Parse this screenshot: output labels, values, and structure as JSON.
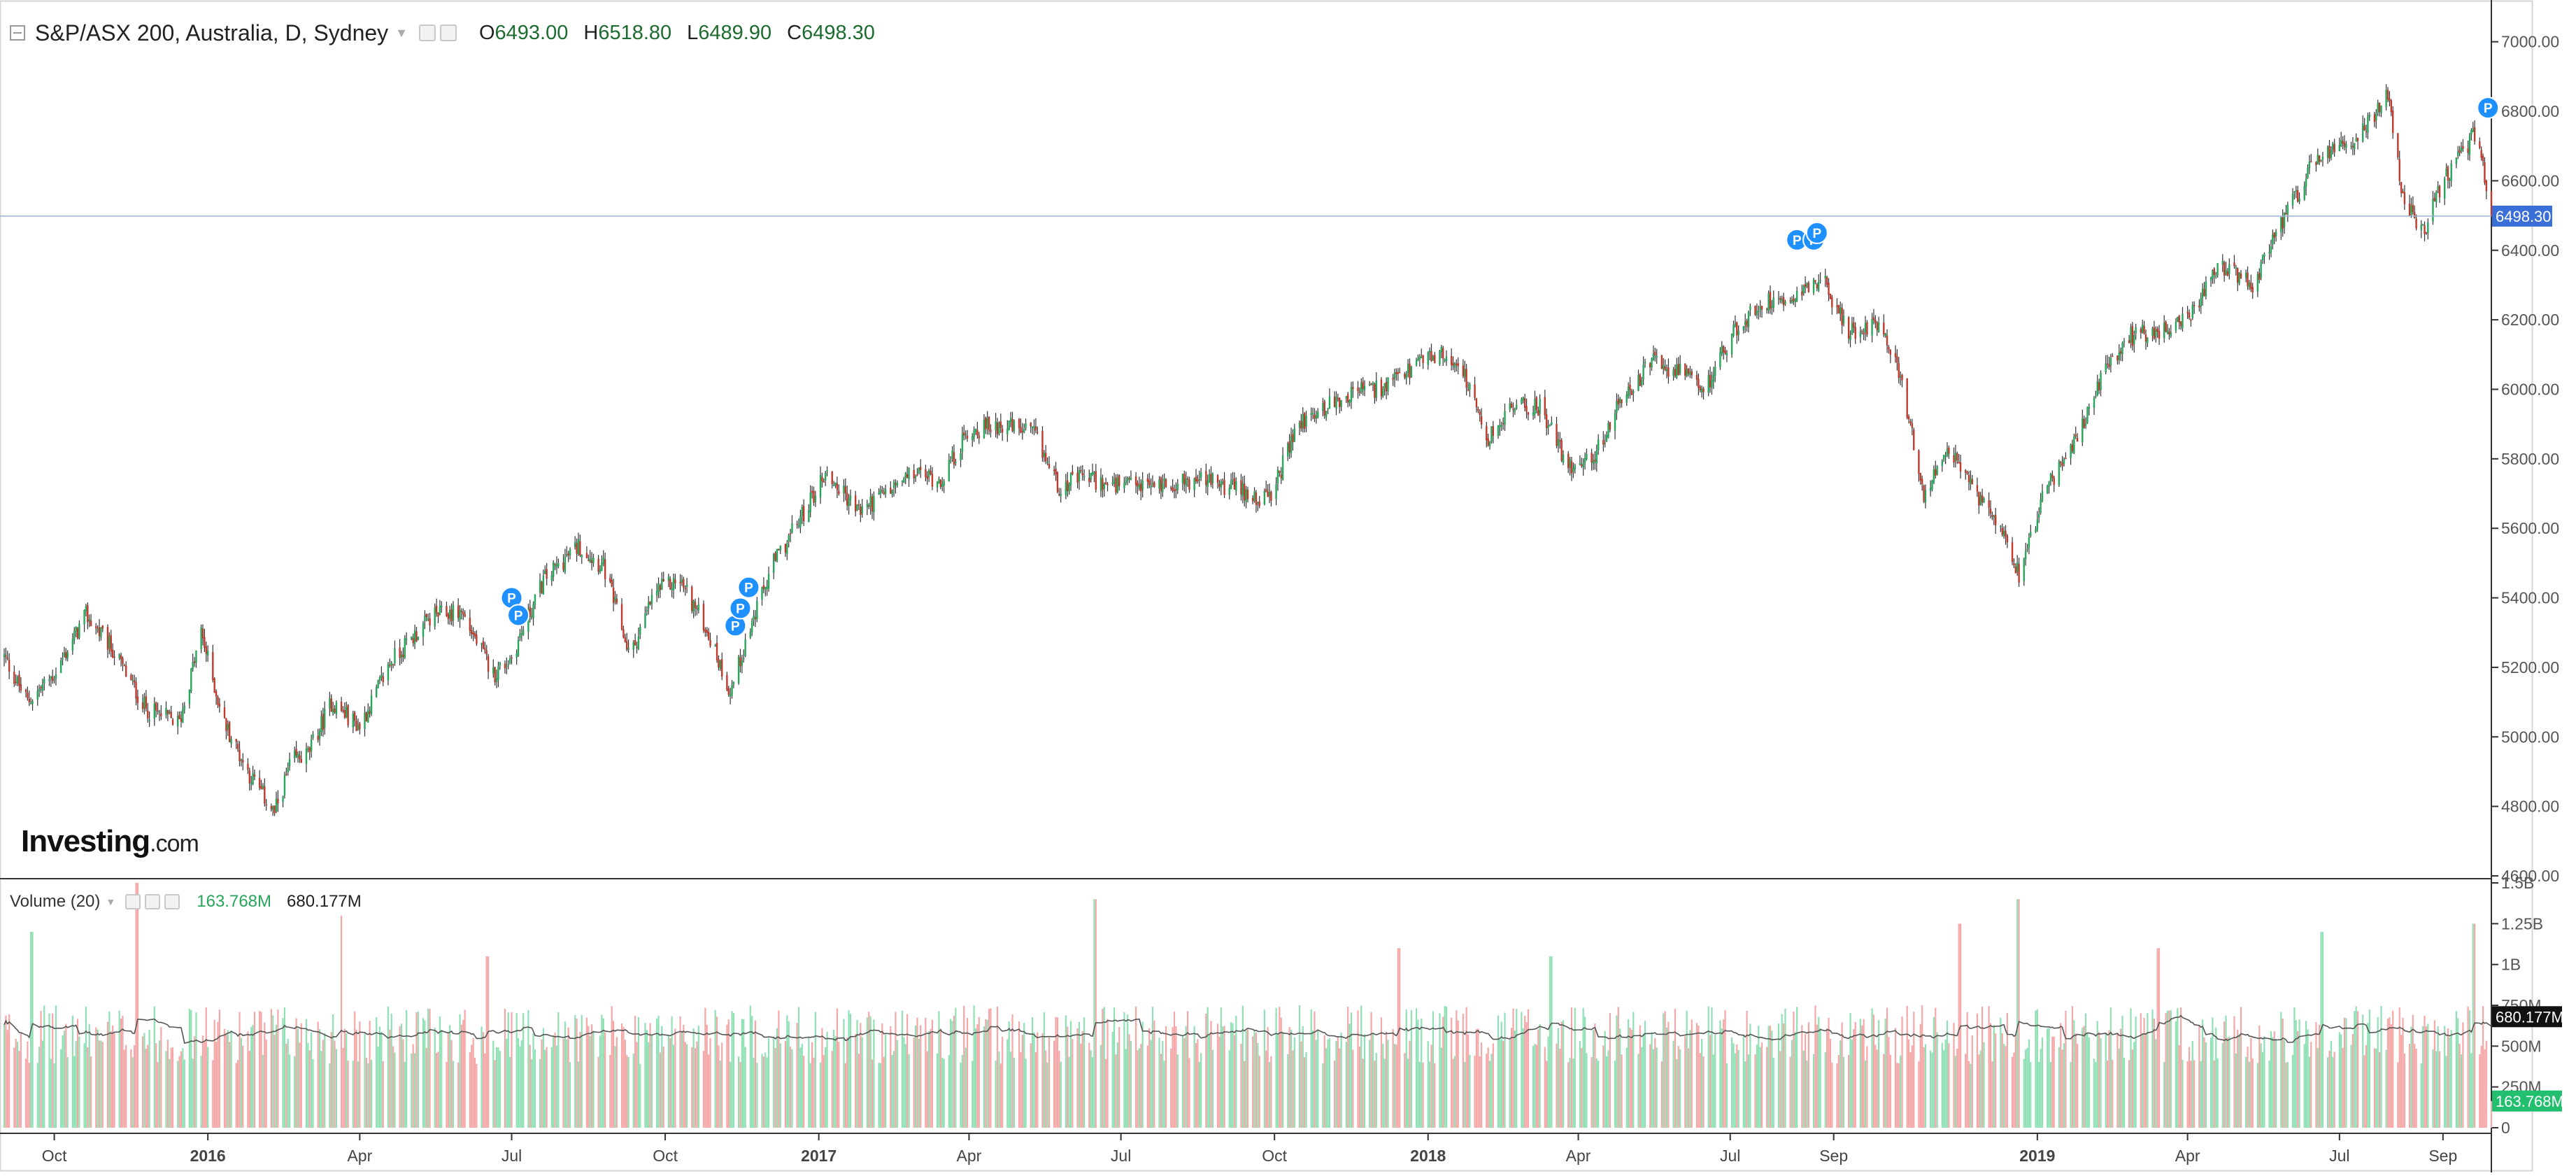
{
  "header": {
    "symbol": "S&P/ASX 200, Australia, D, Sydney",
    "open_label": "O",
    "open": "6493.00",
    "high_label": "H",
    "high": "6518.80",
    "low_label": "L",
    "low": "6489.90",
    "close_label": "C",
    "close": "6498.30"
  },
  "volume_header": {
    "title": "Volume (20)",
    "volume": "163.768M",
    "ma": "680.177M"
  },
  "logo": {
    "brand": "Investing",
    "suffix": ".com"
  },
  "colors": {
    "up": "#26a65b",
    "down": "#c0392b",
    "up_volume": "#8fe0b4",
    "down_volume": "#f5a7a7",
    "last_price_badge": "#3b6fd8",
    "ma_badge": "#111111",
    "volume_badge": "#22c06e",
    "marker": "#1e90ff"
  },
  "icons": [
    "collapse-icon",
    "caret-down-icon",
    "visibility-icon",
    "settings-icon",
    "close-icon",
    "marker-p-icon"
  ],
  "chart_data": [
    {
      "type": "candlestick",
      "title": "S&P/ASX 200, Australia, D, Sydney",
      "x_range": [
        "2015-09-01",
        "2019-09-30"
      ],
      "x_tick_labels": [
        "Oct",
        "2016",
        "Apr",
        "Jul",
        "Oct",
        "2017",
        "Apr",
        "Jul",
        "Oct",
        "2018",
        "Apr",
        "Jul",
        "Sep",
        "2019",
        "Apr",
        "Jul",
        "Sep"
      ],
      "x_tick_dates": [
        "2015-10-01",
        "2016-01-01",
        "2016-04-01",
        "2016-07-01",
        "2016-10-01",
        "2017-01-01",
        "2017-04-01",
        "2017-07-01",
        "2017-10-01",
        "2018-01-01",
        "2018-04-01",
        "2018-07-01",
        "2018-09-01",
        "2019-01-01",
        "2019-04-01",
        "2019-07-01",
        "2019-09-01"
      ],
      "y_range": [
        4600,
        7100
      ],
      "y_ticks": [
        "7000.00",
        "6800.00",
        "6600.00",
        "6400.00",
        "6200.00",
        "6000.00",
        "5800.00",
        "5600.00",
        "5400.00",
        "5200.00",
        "5000.00",
        "4800.00",
        "4600.00"
      ],
      "last_price": 6498.3,
      "last_price_label": "6498.30",
      "close_path": [
        [
          "2015-09-01",
          5230
        ],
        [
          "2015-09-15",
          5100
        ],
        [
          "2015-10-01",
          5180
        ],
        [
          "2015-10-20",
          5350
        ],
        [
          "2015-11-05",
          5250
        ],
        [
          "2015-11-25",
          5080
        ],
        [
          "2015-12-15",
          5040
        ],
        [
          "2015-12-28",
          5300
        ],
        [
          "2016-01-10",
          5050
        ],
        [
          "2016-01-25",
          4900
        ],
        [
          "2016-02-10",
          4780
        ],
        [
          "2016-02-20",
          4930
        ],
        [
          "2016-03-01",
          4950
        ],
        [
          "2016-03-15",
          5100
        ],
        [
          "2016-04-01",
          5030
        ],
        [
          "2016-04-20",
          5220
        ],
        [
          "2016-05-15",
          5350
        ],
        [
          "2016-06-01",
          5360
        ],
        [
          "2016-06-20",
          5180
        ],
        [
          "2016-07-01",
          5230
        ],
        [
          "2016-07-20",
          5450
        ],
        [
          "2016-08-10",
          5550
        ],
        [
          "2016-08-25",
          5490
        ],
        [
          "2016-09-10",
          5230
        ],
        [
          "2016-09-25",
          5420
        ],
        [
          "2016-10-10",
          5450
        ],
        [
          "2016-10-25",
          5320
        ],
        [
          "2016-11-09",
          5130
        ],
        [
          "2016-11-20",
          5300
        ],
        [
          "2016-12-05",
          5500
        ],
        [
          "2016-12-20",
          5620
        ],
        [
          "2017-01-05",
          5760
        ],
        [
          "2017-01-25",
          5650
        ],
        [
          "2017-02-10",
          5700
        ],
        [
          "2017-02-28",
          5760
        ],
        [
          "2017-03-15",
          5740
        ],
        [
          "2017-04-01",
          5880
        ],
        [
          "2017-04-20",
          5900
        ],
        [
          "2017-05-10",
          5870
        ],
        [
          "2017-05-25",
          5720
        ],
        [
          "2017-06-10",
          5750
        ],
        [
          "2017-06-25",
          5720
        ],
        [
          "2017-07-10",
          5720
        ],
        [
          "2017-08-01",
          5730
        ],
        [
          "2017-08-20",
          5740
        ],
        [
          "2017-09-10",
          5710
        ],
        [
          "2017-09-28",
          5680
        ],
        [
          "2017-10-15",
          5900
        ],
        [
          "2017-11-01",
          5950
        ],
        [
          "2017-11-20",
          6000
        ],
        [
          "2017-12-05",
          6000
        ],
        [
          "2017-12-20",
          6050
        ],
        [
          "2018-01-05",
          6100
        ],
        [
          "2018-01-20",
          6080
        ],
        [
          "2018-02-05",
          5850
        ],
        [
          "2018-02-20",
          5950
        ],
        [
          "2018-03-10",
          5950
        ],
        [
          "2018-03-25",
          5780
        ],
        [
          "2018-04-10",
          5800
        ],
        [
          "2018-04-25",
          5950
        ],
        [
          "2018-05-15",
          6080
        ],
        [
          "2018-06-01",
          6050
        ],
        [
          "2018-06-15",
          5990
        ],
        [
          "2018-07-01",
          6150
        ],
        [
          "2018-07-20",
          6250
        ],
        [
          "2018-08-05",
          6270
        ],
        [
          "2018-08-25",
          6320
        ],
        [
          "2018-09-10",
          6160
        ],
        [
          "2018-09-28",
          6200
        ],
        [
          "2018-10-10",
          6050
        ],
        [
          "2018-10-25",
          5700
        ],
        [
          "2018-11-10",
          5820
        ],
        [
          "2018-11-25",
          5700
        ],
        [
          "2018-12-10",
          5620
        ],
        [
          "2018-12-21",
          5470
        ],
        [
          "2019-01-05",
          5700
        ],
        [
          "2019-01-25",
          5860
        ],
        [
          "2019-02-10",
          6050
        ],
        [
          "2019-02-25",
          6150
        ],
        [
          "2019-03-15",
          6170
        ],
        [
          "2019-04-01",
          6200
        ],
        [
          "2019-04-20",
          6350
        ],
        [
          "2019-05-10",
          6300
        ],
        [
          "2019-05-25",
          6450
        ],
        [
          "2019-06-15",
          6650
        ],
        [
          "2019-07-05",
          6700
        ],
        [
          "2019-07-20",
          6780
        ],
        [
          "2019-07-30",
          6860
        ],
        [
          "2019-08-08",
          6550
        ],
        [
          "2019-08-20",
          6450
        ],
        [
          "2019-09-01",
          6600
        ],
        [
          "2019-09-15",
          6700
        ],
        [
          "2019-09-22",
          6750
        ],
        [
          "2019-09-25",
          6650
        ],
        [
          "2019-09-30",
          6498
        ]
      ],
      "markers": [
        {
          "date": "2016-07-01",
          "price": 5400,
          "label": "P"
        },
        {
          "date": "2016-07-05",
          "price": 5350,
          "label": "P"
        },
        {
          "date": "2016-11-12",
          "price": 5320,
          "label": "P"
        },
        {
          "date": "2016-11-15",
          "price": 5370,
          "label": "P"
        },
        {
          "date": "2016-11-20",
          "price": 5430,
          "label": "P"
        },
        {
          "date": "2018-08-10",
          "price": 6430,
          "label": "P"
        },
        {
          "date": "2018-08-20",
          "price": 6430,
          "label": "P"
        },
        {
          "date": "2018-08-22",
          "price": 6450,
          "label": "P"
        },
        {
          "date": "2019-09-28",
          "price": 6810,
          "label": "P"
        }
      ]
    },
    {
      "type": "bar",
      "title": "Volume (20)",
      "y_range": [
        0,
        1500
      ],
      "y_ticks": [
        "1.5B",
        "1.25B",
        "1B",
        "750M",
        "500M",
        "250M",
        "0"
      ],
      "y_tick_values": [
        1500,
        1250,
        1000,
        750,
        500,
        250,
        0
      ],
      "units": "M",
      "typical_volume": 600,
      "ma_level": 680.177,
      "ma_label": "680.177M",
      "last_volume": 163.768,
      "last_volume_label": "163.768M",
      "spikes": [
        [
          "2015-11-20",
          1500
        ],
        [
          "2016-03-20",
          1300
        ],
        [
          "2017-06-16",
          1400
        ],
        [
          "2018-12-21",
          1400
        ],
        [
          "2018-11-16",
          1250
        ],
        [
          "2019-06-21",
          1200
        ],
        [
          "2019-09-20",
          1250
        ],
        [
          "2017-12-15",
          1100
        ],
        [
          "2015-09-18",
          1200
        ],
        [
          "2016-06-17",
          1050
        ],
        [
          "2018-03-16",
          1050
        ],
        [
          "2019-03-15",
          1100
        ]
      ]
    }
  ]
}
